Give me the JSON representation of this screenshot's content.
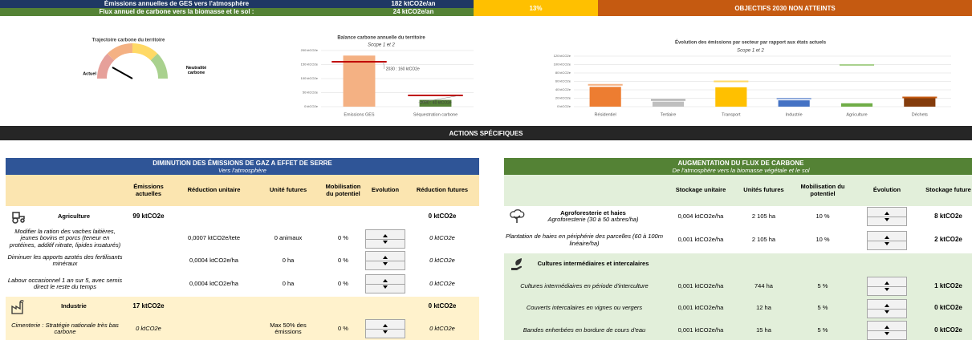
{
  "header": {
    "rows": [
      {
        "label": "Émissions annuelles de GES vers l'atmosphère",
        "value": "182 ktCO2e/an"
      },
      {
        "label": "Flux annuel de carbone vers la biomasse et le sol :",
        "value": "24 ktCO2e/an"
      }
    ],
    "percent": "13%",
    "status": "OBJECTIFS 2030 NON ATTEINTS"
  },
  "gauge": {
    "title": "Trajectoire carbone du territoire",
    "left_label": "Actuel",
    "right_label": "Neutralité carbone"
  },
  "chart_data": [
    {
      "type": "bar",
      "title": "Balance carbone annuelle du territoire",
      "subtitle": "Scope 1 et 2",
      "categories": [
        "Emissions GES",
        "Séquestration carbone"
      ],
      "values": [
        182,
        24
      ],
      "colors": [
        "#f4b183",
        "#548235"
      ],
      "targets": [
        160,
        40
      ],
      "target_color": "#c00000",
      "annotations": [
        "2030 : 160 ktCO2e",
        "2030 : 40 ktCO2e"
      ],
      "ylim": [
        0,
        200
      ],
      "yticks": [
        {
          "value": 0,
          "label": "0 ktCO2e"
        },
        {
          "value": 50,
          "label": "50 ktCO2e"
        },
        {
          "value": 100,
          "label": "100 ktCO2e"
        },
        {
          "value": 150,
          "label": "150 ktCO2e"
        },
        {
          "value": 200,
          "label": "200 ktCO2e"
        }
      ],
      "grid": true
    },
    {
      "type": "bar",
      "title": "Évolution des émissions par secteur par rapport aux états actuels",
      "subtitle": "Scope 1 et 2",
      "categories": [
        "Résidentiel",
        "Tertiaire",
        "Transport",
        "Industrie",
        "Agriculture",
        "Déchets"
      ],
      "values": [
        47,
        12,
        46,
        15,
        8,
        21
      ],
      "colors": [
        "#ed7d31",
        "#bfbfbf",
        "#ffc000",
        "#4472c4",
        "#70ad47",
        "#843c0c"
      ],
      "targets": [
        52,
        16,
        60,
        19,
        99,
        22
      ],
      "target_colors": [
        "#f4b183",
        "#a6a6a6",
        "#ffd966",
        "#8faadc",
        "#a9d18e",
        "#c55a11"
      ],
      "ylim": [
        0,
        120
      ],
      "yticks": [
        {
          "value": 0,
          "label": "0 ktCO2e"
        },
        {
          "value": 20,
          "label": "20 ktCO2e"
        },
        {
          "value": 40,
          "label": "40 ktCO2e"
        },
        {
          "value": 60,
          "label": "60 ktCO2e"
        },
        {
          "value": 80,
          "label": "80 ktCO2e"
        },
        {
          "value": 100,
          "label": "100 ktCO2e"
        },
        {
          "value": 120,
          "label": "120 ktCO2e"
        }
      ],
      "grid": true
    }
  ],
  "actions_title": "ACTIONS SPÉCIFIQUES",
  "left_table": {
    "title": "DIMINUTION DES ÉMISSIONS DE GAZ A EFFET DE SERRE",
    "subtitle": "Vers l'atmosphère",
    "headers": [
      "Émissions actuelles",
      "Réduction unitaire",
      "Unité futures",
      "Mobilisation du potentiel",
      "Evolution",
      "Réduction futures"
    ],
    "rows": [
      {
        "label": "Agriculture",
        "emissions": "99 ktCO2e",
        "future_reduction": "0 ktCO2e"
      },
      {
        "label": "Modifier la ration des vaches laitières, jeunes bovins et porcs (teneur en protéines, additif nitrate, lipides insaturés)",
        "unit_reduction": "0,0007  ktCO2e/tete",
        "future_units": "0 animaux",
        "mobilisation": "0 %",
        "future_reduction": "0 ktCO2e"
      },
      {
        "label": "Diminuer les apports azotés des fertilisants minéraux",
        "unit_reduction": "0,0004  ktCO2e/ha",
        "future_units": "0 ha",
        "mobilisation": "0 %",
        "future_reduction": "0 ktCO2e"
      },
      {
        "label": "Labour occasionnel 1 an sur 5, avec semis direct le reste du temps",
        "unit_reduction": "0,0004  ktCO2e/ha",
        "future_units": "0 ha",
        "mobilisation": "0 %",
        "future_reduction": "0 ktCO2e"
      },
      {
        "label": "Industrie",
        "emissions": "17 ktCO2e",
        "future_reduction": "0 ktCO2e"
      },
      {
        "label": "Cimenterie : Stratégie nationale très bas carbone",
        "emissions": "0 ktCO2e",
        "future_units": "Max 50% des émissions",
        "mobilisation": "0 %",
        "future_reduction": "0 ktCO2e"
      }
    ]
  },
  "right_table": {
    "title": "AUGMENTATION DU FLUX DE CARBONE",
    "subtitle": "De l'atmosphère vers la biomasse végétale et le sol",
    "headers": [
      "Stockage unitaire",
      "Unités futures",
      "Mobilisation du potentiel",
      "Évolution",
      "Stockage future"
    ],
    "rows": [
      {
        "label": "Agroforesterie et haies",
        "sublabel": "Agroforesterie (30 à 50 arbres/ha)",
        "unit_storage": "0,004  ktCO2e/ha",
        "future_units": "2 105 ha",
        "mobilisation": "10 %",
        "future_storage": "8 ktCO2e"
      },
      {
        "label": "Plantation de haies en périphérie des parcelles (60 à 100m linéaire/ha)",
        "unit_storage": "0,001  ktCO2e/ha",
        "future_units": "2 105 ha",
        "mobilisation": "10 %",
        "future_storage": "2 ktCO2e"
      },
      {
        "label": "Cultures intermédiaires et intercalaires"
      },
      {
        "label": "Cultures intermédiaires en période d'interculture",
        "unit_storage": "0,001  ktCO2e/ha",
        "future_units": "744 ha",
        "mobilisation": "5 %",
        "future_storage": "1 ktCO2e"
      },
      {
        "label": "Couverts intercalaires en vignes ou vergers",
        "unit_storage": "0,001  ktCO2e/ha",
        "future_units": "12 ha",
        "mobilisation": "5 %",
        "future_storage": "0 ktCO2e"
      },
      {
        "label": "Bandes enherbées en bordure de cours d'eau",
        "unit_storage": "0,001  ktCO2e/ha",
        "future_units": "15 ha",
        "mobilisation": "5 %",
        "future_storage": "0 ktCO2e"
      }
    ]
  }
}
